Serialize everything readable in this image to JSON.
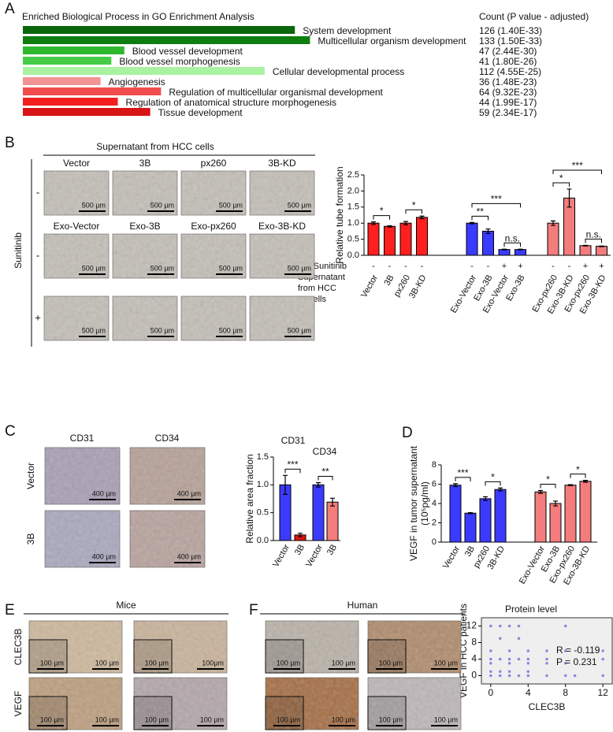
{
  "panel_labels": [
    "A",
    "B",
    "C",
    "D",
    "E",
    "F"
  ],
  "chart_data": [
    {
      "type": "hbar",
      "title": "Enriched Biological Process in GO Enrichment Analysis",
      "value_header": "Count (P value - adjusted)",
      "categories": [
        "System development",
        "Multicellular organism development",
        "Blood vessel development",
        "Blood vessel morphogenesis",
        "Cellular developmental process",
        "Angiogenesis",
        "Regulation of multicellular organismal development",
        "Regulation of anatomical structure morphogenesis",
        "Tissue development"
      ],
      "values": [
        126,
        133,
        47,
        41,
        112,
        36,
        64,
        44,
        59
      ],
      "value_labels": [
        "126 (1.40E-33)",
        "133 (1.50E-33)",
        "47 (2.44E-30)",
        "41 (1.80E-26)",
        "112 (4.55E-25)",
        "36 (1.48E-23)",
        "64 (9.32E-23)",
        "44 (1.99E-17)",
        "59 (2.34E-17)"
      ],
      "colors": [
        "#0b650b",
        "#0f7d0f",
        "#2eb82e",
        "#46cc46",
        "#a9f2a2",
        "#f29494",
        "#f24c4c",
        "#f42020",
        "#d81414"
      ]
    },
    {
      "type": "bar",
      "ylabel": "Relative tube formation",
      "categories": [
        "Vector",
        "3B",
        "px260",
        "3B-KD",
        "Exo-Vector",
        "Exo-3B",
        "Exo-Vector",
        "Exo-3B",
        "Exo-px260",
        "Exo-3B-KD",
        "Exo-px260",
        "Exo-3B-KD"
      ],
      "values": [
        1.0,
        0.9,
        1.0,
        1.18,
        1.0,
        0.75,
        0.18,
        0.18,
        1.0,
        1.78,
        0.3,
        0.28
      ],
      "errors": [
        0.04,
        0.02,
        0.05,
        0.04,
        0.02,
        0.07,
        0.01,
        0.01,
        0.07,
        0.28,
        0.01,
        0.01
      ],
      "colors": [
        "#ff1f1f",
        "#ff1f1f",
        "#ff1f1f",
        "#ff1f1f",
        "#3b3bff",
        "#3b3bff",
        "#3b3bff",
        "#3b3bff",
        "#f47c7c",
        "#f47c7c",
        "#f47c7c",
        "#f47c7c"
      ],
      "ylim": [
        0,
        2.5
      ],
      "yticks": [
        {
          "value": 0,
          "label": "0.0"
        },
        0.5,
        {
          "value": 1,
          "label": "1.0"
        },
        1.5,
        {
          "value": 2,
          "label": "2.0"
        },
        2.5
      ],
      "treatment_label": "Sunitinib",
      "treatment_values": [
        "-",
        "-",
        "-",
        "-",
        "-",
        "-",
        "+",
        "+",
        "-",
        "-",
        "+",
        "+"
      ],
      "xlabel": [
        "Supernatant",
        "from HCC",
        "cells"
      ],
      "significance": [
        {
          "from": 0,
          "to": 1,
          "label": "*"
        },
        {
          "from": 2,
          "to": 3,
          "label": "*"
        },
        {
          "from": 4,
          "to": 5,
          "label": "**"
        },
        {
          "from": 6,
          "to": 7,
          "label": "n.s."
        },
        {
          "from": 4,
          "to": 7,
          "label": "***"
        },
        {
          "from": 8,
          "to": 9,
          "label": "*"
        },
        {
          "from": 10,
          "to": 11,
          "label": "n.s."
        },
        {
          "from": 8,
          "to": 11,
          "label": "***"
        }
      ]
    },
    {
      "type": "bar",
      "ylabel": "Relative area fraction",
      "group_titles": [
        "CD31",
        "CD34"
      ],
      "categories": [
        "Vector",
        "3B",
        "Vector",
        "3B"
      ],
      "values": [
        1.0,
        0.1,
        1.0,
        0.69
      ],
      "errors": [
        0.17,
        0.03,
        0.04,
        0.07
      ],
      "colors": [
        "#3b3bff",
        "#e01515",
        "#3b3bff",
        "#f47c7c"
      ],
      "ylim": [
        0,
        1.5
      ],
      "yticks": [
        {
          "value": 0,
          "label": "0.0"
        },
        0.5,
        {
          "value": 1,
          "label": "1.0"
        },
        1.5
      ],
      "significance": [
        {
          "from": 0,
          "to": 1,
          "label": "***"
        },
        {
          "from": 2,
          "to": 3,
          "label": "**"
        }
      ]
    },
    {
      "type": "bar",
      "ylabel": [
        "VEGF in tumor supernatant",
        "(10⁵pg/ml)"
      ],
      "categories": [
        "Vector",
        "3B",
        "px260",
        "3B-KD",
        "Exo-Vector",
        "Exo-3B",
        "Exo-px260",
        "Exo-3B-KD"
      ],
      "values": [
        5.9,
        3.0,
        4.5,
        5.45,
        5.2,
        4.0,
        5.9,
        6.3
      ],
      "errors": [
        0.15,
        0.05,
        0.2,
        0.15,
        0.15,
        0.25,
        0.05,
        0.1
      ],
      "colors": [
        "#3b3bff",
        "#3b3bff",
        "#3b3bff",
        "#3b3bff",
        "#f47c7c",
        "#f47c7c",
        "#f47c7c",
        "#f47c7c"
      ],
      "ylim": [
        0,
        8
      ],
      "yticks": [
        0,
        2,
        4,
        6,
        8
      ],
      "significance": [
        {
          "from": 0,
          "to": 1,
          "label": "***"
        },
        {
          "from": 2,
          "to": 3,
          "label": "*"
        },
        {
          "from": 4,
          "to": 5,
          "label": "*"
        },
        {
          "from": 6,
          "to": 7,
          "label": "*"
        }
      ]
    },
    {
      "type": "scatter",
      "title": "Protein level",
      "xlabel": "CLEC3B",
      "ylabel": "VEGF in HCC patients",
      "x": [
        0,
        1,
        2,
        3,
        8,
        1,
        3,
        0,
        2,
        4,
        6,
        8,
        12,
        0,
        1,
        2,
        3,
        4,
        6,
        12,
        0,
        2,
        4,
        6,
        8,
        0,
        1,
        2,
        4,
        0,
        1,
        2,
        3,
        4,
        6,
        8,
        9,
        12
      ],
      "y": [
        12,
        12,
        12,
        12,
        12,
        9,
        9,
        6,
        6,
        6,
        6,
        6,
        6,
        4,
        4,
        4,
        4,
        4,
        4,
        4,
        3,
        3,
        3,
        3,
        3,
        1,
        1,
        1,
        1,
        0,
        0,
        0,
        0,
        0,
        0,
        0,
        0,
        0
      ],
      "color": "#8a8ae0",
      "xlim": [
        -1,
        13
      ],
      "ylim": [
        -2,
        14
      ],
      "xticks": [
        0,
        4,
        8,
        12
      ],
      "yticks": [
        0,
        4,
        8,
        12
      ],
      "annotations": [
        "R = -0.119",
        "P = 0.231"
      ]
    }
  ],
  "panel_b_images": {
    "header": "Supernatant from HCC cells",
    "side_label": "Sunitinib",
    "row_labels": [
      "-",
      "-",
      "+"
    ],
    "image_labels": [
      [
        "Vector",
        "3B",
        "px260",
        "3B-KD"
      ],
      [
        "Exo-Vector",
        "Exo-3B",
        "Exo-px260",
        "Exo-3B-KD"
      ]
    ],
    "scale_bars": [
      [
        "500 µm",
        "500 µm",
        "500 µm",
        "500 µm"
      ],
      [
        "500 µm",
        "500 µm",
        "500 µm",
        "500 µm"
      ],
      [
        "500 µm",
        "500 µm",
        "500 µm",
        "500 µm"
      ]
    ]
  },
  "panel_c_images": {
    "column_labels": [
      "CD31",
      "CD34"
    ],
    "row_labels": [
      "Vector",
      "3B"
    ],
    "scale_bars": [
      [
        "400 µm",
        "400 µm"
      ],
      [
        "400 µm",
        "400 µm"
      ]
    ]
  },
  "panel_e_images": {
    "header": "Mice",
    "row_labels": [
      "CLEC3B",
      "VEGF"
    ],
    "scale_bars": [
      [
        "100 µm",
        "100µm"
      ],
      [
        "100 µm",
        "100 µm"
      ]
    ],
    "inset_scale_bars": [
      [
        "100 µm",
        "100 µm"
      ],
      [
        "100 µm",
        "100 µm"
      ]
    ]
  },
  "panel_f_images": {
    "header": "Human",
    "scale_bars": [
      [
        "100 µm",
        "100 µm"
      ],
      [
        "100 µm",
        "100 µm"
      ]
    ],
    "inset_scale_bars": [
      [
        "100 µm",
        "100 µm"
      ],
      [
        "100 µm",
        "100 µm"
      ]
    ]
  }
}
